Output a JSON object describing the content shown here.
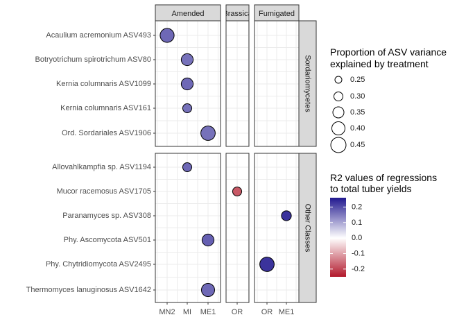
{
  "chart_data": {
    "type": "scatter",
    "facet_columns": [
      "Amended",
      "Brassica",
      "Fumigated"
    ],
    "facet_rows": [
      "Sordariomycetes",
      "Other Classes"
    ],
    "x_categories": {
      "Amended": [
        "MN2",
        "MI",
        "ME1"
      ],
      "Brassica": [
        "OR"
      ],
      "Fumigated": [
        "OR",
        "ME1"
      ]
    },
    "y_categories": {
      "Sordariomycetes": [
        "Acaulium acremonium ASV493",
        "Botryotrichum spirotrichum ASV80",
        "Kernia columnaris ASV1099",
        "Kernia columnaris ASV161",
        "Ord. Sordariales ASV1906"
      ],
      "Other Classes": [
        "Allovahlkampfia sp. ASV1194",
        "Mucor racemosus ASV1705",
        "Paranamyces sp. ASV308",
        "Phy. Ascomycota ASV501",
        "Phy. Chytridiomycota ASV2495",
        "Thermomyces lanuginosus ASV1642"
      ]
    },
    "points": [
      {
        "row": "Sordariomycetes",
        "col": "Amended",
        "x": "MN2",
        "y": "Acaulium acremonium ASV493",
        "size": 0.42,
        "r2": 0.17
      },
      {
        "row": "Sordariomycetes",
        "col": "Amended",
        "x": "MI",
        "y": "Botryotrichum spirotrichum ASV80",
        "size": 0.37,
        "r2": 0.16
      },
      {
        "row": "Sordariomycetes",
        "col": "Amended",
        "x": "MI",
        "y": "Kernia columnaris ASV1099",
        "size": 0.37,
        "r2": 0.17
      },
      {
        "row": "Sordariomycetes",
        "col": "Amended",
        "x": "MI",
        "y": "Kernia columnaris ASV161",
        "size": 0.3,
        "r2": 0.16
      },
      {
        "row": "Sordariomycetes",
        "col": "Amended",
        "x": "ME1",
        "y": "Ord. Sordariales ASV1906",
        "size": 0.43,
        "r2": 0.16
      },
      {
        "row": "Other Classes",
        "col": "Amended",
        "x": "MI",
        "y": "Allovahlkampfia sp. ASV1194",
        "size": 0.3,
        "r2": 0.17
      },
      {
        "row": "Other Classes",
        "col": "Brassica",
        "x": "OR",
        "y": "Mucor racemosus ASV1705",
        "size": 0.3,
        "r2": -0.18
      },
      {
        "row": "Other Classes",
        "col": "Fumigated",
        "x": "ME1",
        "y": "Paranamyces sp. ASV308",
        "size": 0.32,
        "r2": 0.23
      },
      {
        "row": "Other Classes",
        "col": "Amended",
        "x": "ME1",
        "y": "Phy. Ascomycota ASV501",
        "size": 0.37,
        "r2": 0.18
      },
      {
        "row": "Other Classes",
        "col": "Fumigated",
        "x": "OR",
        "y": "Phy. Chytridiomycota ASV2495",
        "size": 0.43,
        "r2": 0.23
      },
      {
        "row": "Other Classes",
        "col": "Amended",
        "x": "ME1",
        "y": "Thermomyces lanuginosus ASV1642",
        "size": 0.4,
        "r2": 0.17
      }
    ],
    "size_legend": {
      "title_lines": [
        "Proportion of ASV variance",
        "explained by treatment"
      ],
      "breaks": [
        "0.25",
        "0.30",
        "0.35",
        "0.40",
        "0.45"
      ],
      "break_values": [
        0.25,
        0.3,
        0.35,
        0.4,
        0.45
      ]
    },
    "color_legend": {
      "title_lines": [
        "R2 values of regressions",
        "to total tuber yields"
      ],
      "breaks": [
        "0.2",
        "0.1",
        "0.0",
        "-0.1",
        "-0.2"
      ],
      "break_values": [
        0.2,
        0.1,
        0.0,
        -0.1,
        -0.2
      ],
      "limits": [
        -0.25,
        0.26
      ],
      "low_color": "#b2182b",
      "mid_color": "#ffffff",
      "high_color": "#21188f"
    },
    "colors": {
      "panel_border": "#333333",
      "grid": "#ebebeb",
      "strip_fill": "#d9d9d9",
      "point_purple": "#6a53c2",
      "point_blue": "#3429a8",
      "point_red": "#a64545"
    },
    "grid": true,
    "legend_position": "right"
  }
}
